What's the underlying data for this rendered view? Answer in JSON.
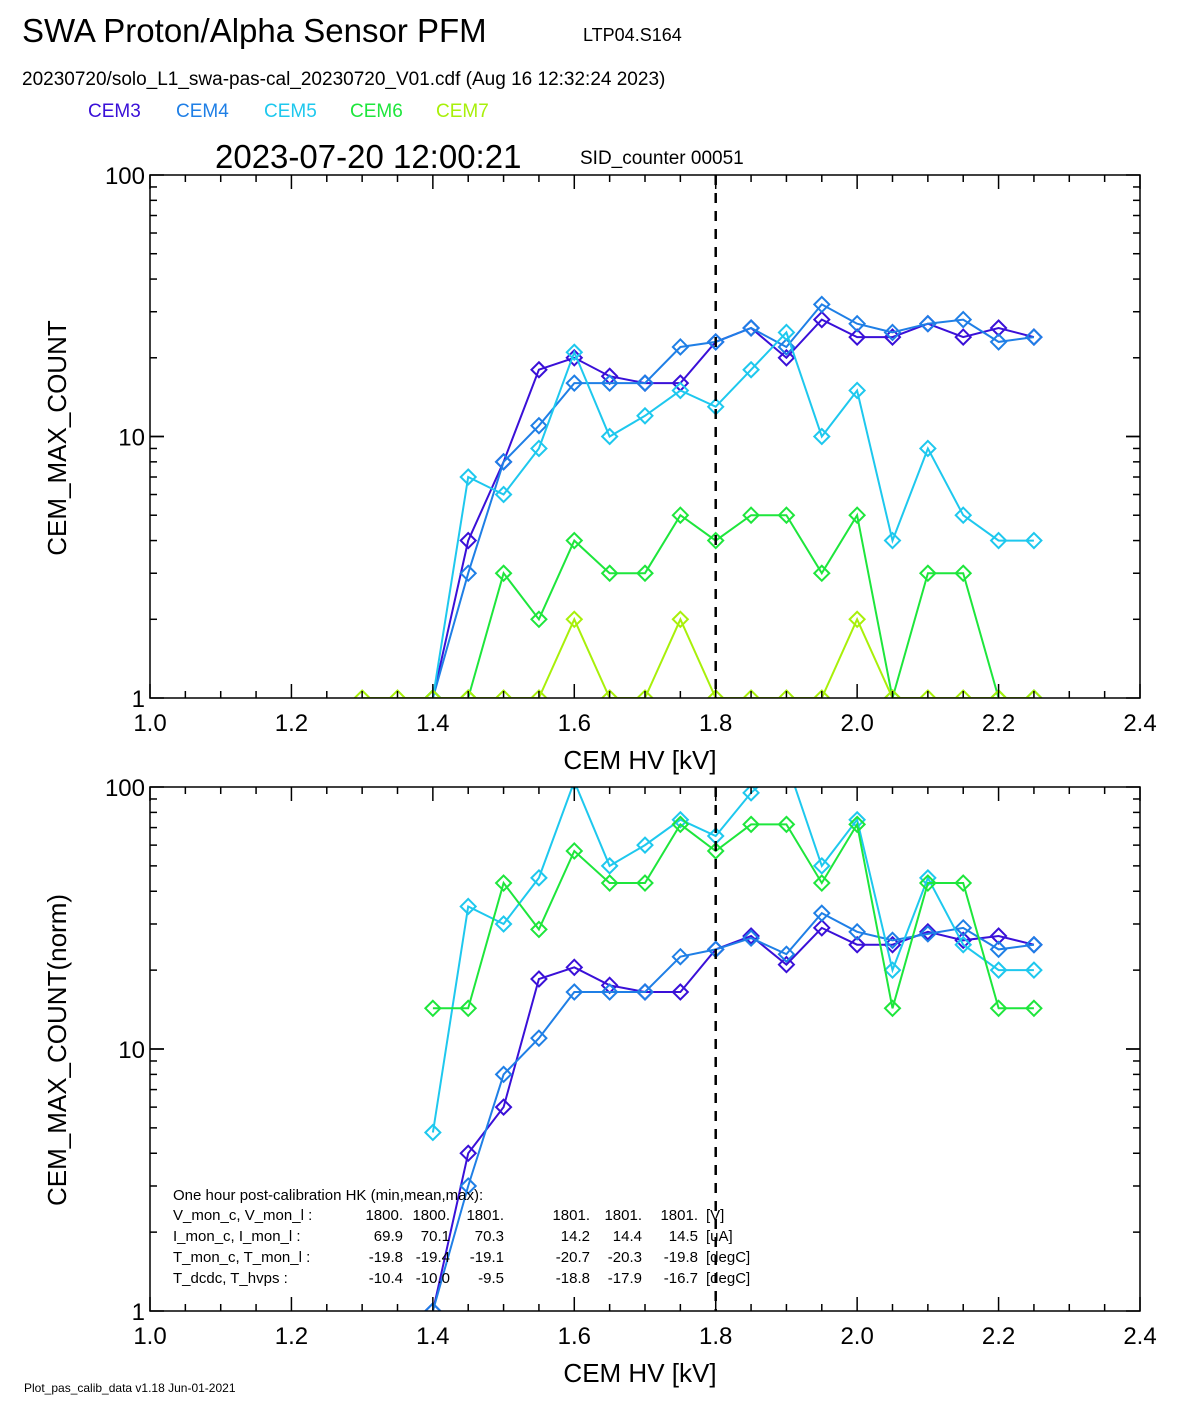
{
  "header": {
    "title": "SWA Proton/Alpha Sensor PFM",
    "test_id": "LTP04.S164",
    "file_line": "20230720/solo_L1_swa-pas-cal_20230720_V01.cdf  (Aug 16 12:32:24 2023)",
    "timestamp": "2023-07-20 12:00:21",
    "sid_counter": "SID_counter 00051"
  },
  "legend": [
    {
      "name": "CEM3",
      "color": "#3a10d8"
    },
    {
      "name": "CEM4",
      "color": "#1f7fe6"
    },
    {
      "name": "CEM5",
      "color": "#1ec8ee"
    },
    {
      "name": "CEM6",
      "color": "#1ee63c"
    },
    {
      "name": "CEM7",
      "color": "#a8f00a"
    }
  ],
  "chart_data": [
    {
      "type": "line",
      "xlabel": "CEM HV [kV]",
      "ylabel": "CEM_MAX_COUNT",
      "xlim": [
        1.0,
        2.4
      ],
      "ylim": [
        1,
        100
      ],
      "yscale": "log",
      "x_ticks": [
        "1.0",
        "1.2",
        "1.4",
        "1.6",
        "1.8",
        "2.0",
        "2.2",
        "2.4"
      ],
      "y_ticks": [
        "1",
        "10",
        "100"
      ],
      "vline_x": 1.8,
      "x": [
        1.3,
        1.35,
        1.4,
        1.45,
        1.5,
        1.55,
        1.6,
        1.65,
        1.7,
        1.75,
        1.8,
        1.85,
        1.9,
        1.95,
        2.0,
        2.05,
        2.1,
        2.15,
        2.2,
        2.25
      ],
      "series": [
        {
          "name": "CEM3",
          "color": "#3a10d8",
          "values": [
            null,
            null,
            1,
            4,
            8,
            18,
            20,
            17,
            16,
            16,
            23,
            26,
            20,
            28,
            24,
            24,
            27,
            24,
            26,
            24
          ]
        },
        {
          "name": "CEM4",
          "color": "#1f7fe6",
          "values": [
            null,
            null,
            1,
            3,
            8,
            11,
            16,
            16,
            16,
            22,
            23,
            26,
            22,
            32,
            27,
            25,
            27,
            28,
            23,
            24
          ]
        },
        {
          "name": "CEM5",
          "color": "#1ec8ee",
          "values": [
            null,
            null,
            1,
            7,
            6,
            9,
            21,
            10,
            12,
            15,
            13,
            18,
            25,
            10,
            15,
            4,
            9,
            5,
            4,
            4
          ]
        },
        {
          "name": "CEM6",
          "color": "#1ee63c",
          "values": [
            null,
            null,
            1,
            1,
            3,
            2,
            4,
            3,
            3,
            5,
            4,
            5,
            5,
            3,
            5,
            1,
            3,
            3,
            1,
            1
          ]
        },
        {
          "name": "CEM7",
          "color": "#a8f00a",
          "values": [
            1,
            1,
            1,
            1,
            1,
            1,
            2,
            1,
            1,
            2,
            1,
            1,
            1,
            1,
            2,
            1,
            1,
            1,
            1,
            1
          ]
        }
      ]
    },
    {
      "type": "line",
      "xlabel": "CEM HV [kV]",
      "ylabel": "CEM_MAX_COUNT(norm)",
      "xlim": [
        1.0,
        2.4
      ],
      "ylim": [
        1,
        100
      ],
      "yscale": "log",
      "x_ticks": [
        "1.0",
        "1.2",
        "1.4",
        "1.6",
        "1.8",
        "2.0",
        "2.2",
        "2.4"
      ],
      "y_ticks": [
        "1",
        "10",
        "100"
      ],
      "vline_x": 1.8,
      "x": [
        1.3,
        1.35,
        1.4,
        1.45,
        1.5,
        1.55,
        1.6,
        1.65,
        1.7,
        1.75,
        1.8,
        1.85,
        1.9,
        1.95,
        2.0,
        2.05,
        2.1,
        2.15,
        2.2,
        2.25
      ],
      "series": [
        {
          "name": "CEM3",
          "color": "#3a10d8",
          "values": [
            null,
            null,
            1,
            4,
            6,
            18.5,
            20.5,
            17.5,
            16.5,
            16.5,
            24,
            27,
            21,
            29,
            25,
            25,
            28,
            26,
            27,
            25
          ]
        },
        {
          "name": "CEM4",
          "color": "#1f7fe6",
          "values": [
            null,
            null,
            1,
            3,
            8,
            11,
            16.5,
            16.5,
            16.5,
            22.5,
            24,
            26.5,
            23,
            33,
            28,
            26,
            27.5,
            29,
            24,
            25
          ]
        },
        {
          "name": "CEM5",
          "color": "#1ec8ee",
          "values": [
            null,
            null,
            4.8,
            35,
            30,
            45,
            105,
            50,
            60,
            75,
            65,
            95,
            125,
            50,
            75,
            20,
            45,
            25,
            20,
            20
          ]
        },
        {
          "name": "CEM6",
          "color": "#1ee63c",
          "values": [
            null,
            null,
            14.3,
            14.3,
            43,
            28.6,
            57,
            43,
            43,
            72,
            57,
            72,
            72,
            43,
            72,
            14.3,
            43,
            43,
            14.3,
            14.3
          ]
        }
      ]
    }
  ],
  "hk_box": {
    "heading": "One hour post-calibration HK (min,mean,max):",
    "rows": [
      {
        "label": "V_mon_c, V_mon_l :",
        "a1": "1800.",
        "a2": "1800.",
        "a3": "1801.",
        "b1": "1801.",
        "b2": "1801.",
        "b3": "1801.",
        "unit": "[V]"
      },
      {
        "label": "I_mon_c,  I_mon_l :",
        "a1": "69.9",
        "a2": "70.1",
        "a3": "70.3",
        "b1": "14.2",
        "b2": "14.4",
        "b3": "14.5",
        "unit": "[uA]"
      },
      {
        "label": "T_mon_c, T_mon_l :",
        "a1": "-19.8",
        "a2": "-19.4",
        "a3": "-19.1",
        "b1": "-20.7",
        "b2": "-20.3",
        "b3": "-19.8",
        "unit": "[degC]"
      },
      {
        "label": "T_dcdc,    T_hvps :",
        "a1": "-10.4",
        "a2": "-10.0",
        "a3": "-9.5",
        "b1": "-18.8",
        "b2": "-17.9",
        "b3": "-16.7",
        "unit": "[degC]"
      }
    ]
  },
  "footer": "Plot_pas_calib_data v1.18 Jun-01-2021"
}
